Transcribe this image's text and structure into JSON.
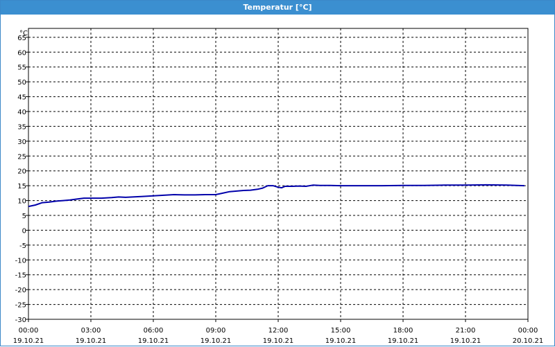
{
  "window": {
    "title": "Temperatur [°C]"
  },
  "chart_data": {
    "type": "line",
    "title": "Temperatur [°C]",
    "ylabel": "°C",
    "xlabel": "",
    "ylim": [
      -30,
      68
    ],
    "xlim_hours": [
      0,
      24
    ],
    "y_ticks": [
      65,
      60,
      55,
      50,
      45,
      40,
      35,
      30,
      25,
      20,
      15,
      10,
      5,
      0,
      -5,
      -10,
      -15,
      -20,
      -25,
      -30
    ],
    "x_ticks": [
      {
        "time": "00:00",
        "date": "19.10.21"
      },
      {
        "time": "03:00",
        "date": "19.10.21"
      },
      {
        "time": "06:00",
        "date": "19.10.21"
      },
      {
        "time": "09:00",
        "date": "19.10.21"
      },
      {
        "time": "12:00",
        "date": "19.10.21"
      },
      {
        "time": "15:00",
        "date": "19.10.21"
      },
      {
        "time": "18:00",
        "date": "19.10.21"
      },
      {
        "time": "21:00",
        "date": "19.10.21"
      },
      {
        "time": "00:00",
        "date": "20.10.21"
      }
    ],
    "grid": true,
    "line_color": "#0000aa",
    "series": [
      {
        "x": [
          "19.10.21 00:00",
          "19.10.21 00:20",
          "19.10.21 00:40",
          "19.10.21 01:00",
          "19.10.21 01:20",
          "19.10.21 01:40",
          "19.10.21 02:00",
          "19.10.21 02:20",
          "19.10.21 02:40",
          "19.10.21 03:00",
          "19.10.21 03:30",
          "19.10.21 04:00",
          "19.10.21 04:20",
          "19.10.21 04:40",
          "19.10.21 05:00",
          "19.10.21 05:30",
          "19.10.21 06:00",
          "19.10.21 06:30",
          "19.10.21 07:00",
          "19.10.21 07:30",
          "19.10.21 08:00",
          "19.10.21 08:30",
          "19.10.21 09:00",
          "19.10.21 09:20",
          "19.10.21 09:40",
          "19.10.21 10:00",
          "19.10.21 10:20",
          "19.10.21 10:40",
          "19.10.21 11:00",
          "19.10.21 11:15",
          "19.10.21 11:30",
          "19.10.21 11:45",
          "19.10.21 12:00",
          "19.10.21 12:10",
          "19.10.21 12:20",
          "19.10.21 12:40",
          "19.10.21 13:00",
          "19.10.21 13:20",
          "19.10.21 13:40",
          "19.10.21 14:00",
          "19.10.21 14:30",
          "19.10.21 15:00",
          "19.10.21 16:00",
          "19.10.21 17:00",
          "19.10.21 18:00",
          "19.10.21 19:00",
          "19.10.21 20:00",
          "19.10.21 21:00",
          "19.10.21 22:00",
          "19.10.21 23:00",
          "19.10.21 23:50"
        ],
        "y": [
          8,
          8.5,
          9.3,
          9.5,
          9.8,
          10,
          10.2,
          10.5,
          10.8,
          10.8,
          10.8,
          11,
          11.2,
          11.1,
          11.2,
          11.4,
          11.6,
          11.8,
          12,
          11.9,
          11.9,
          12,
          12,
          12.5,
          13,
          13.2,
          13.4,
          13.5,
          13.8,
          14.2,
          15,
          15,
          14.5,
          14.3,
          14.8,
          14.8,
          14.9,
          14.8,
          15.2,
          15.1,
          15.1,
          15,
          15,
          15,
          15.1,
          15.1,
          15.2,
          15.2,
          15.3,
          15.2,
          15
        ]
      }
    ]
  }
}
